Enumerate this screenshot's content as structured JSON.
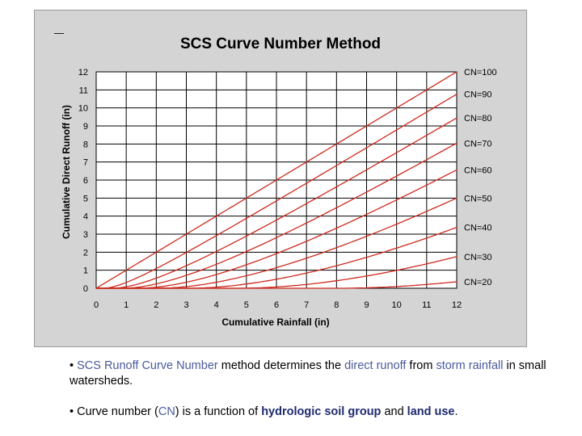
{
  "chart_data": {
    "type": "line",
    "title": "SCS Curve Number Method",
    "xlabel": "Cumulative Rainfall (in)",
    "ylabel": "Cumulative Direct Runoff (in)",
    "xlim": [
      0,
      12
    ],
    "ylim": [
      0,
      12
    ],
    "xticks": [
      0,
      1,
      2,
      3,
      4,
      5,
      6,
      7,
      8,
      9,
      10,
      11,
      12
    ],
    "yticks": [
      0,
      1,
      2,
      3,
      4,
      5,
      6,
      7,
      8,
      9,
      10,
      11,
      12
    ],
    "grid": true,
    "line_color": "#cc2a1e",
    "series": [
      {
        "name": "CN=100",
        "cn": 100
      },
      {
        "name": "CN=90",
        "cn": 90
      },
      {
        "name": "CN=80",
        "cn": 80
      },
      {
        "name": "CN=70",
        "cn": 70
      },
      {
        "name": "CN=60",
        "cn": 60
      },
      {
        "name": "CN=50",
        "cn": 50
      },
      {
        "name": "CN=40",
        "cn": 40
      },
      {
        "name": "CN=30",
        "cn": 30
      },
      {
        "name": "CN=20",
        "cn": 20
      }
    ]
  },
  "text": {
    "bullet1": {
      "p1": "• ",
      "h1": "SCS Runoff Curve Number",
      "p2": " method determines the ",
      "h2": "direct runoff",
      "p3": "  from ",
      "h3": "storm rainfall",
      "p4": " in small watersheds."
    },
    "bullet2": {
      "p1": "• Curve number (",
      "h1": "CN",
      "p2": ") is a function of ",
      "h2": "hydrologic soil group",
      "p3": " and ",
      "h3": "land use",
      "p4": "."
    }
  }
}
